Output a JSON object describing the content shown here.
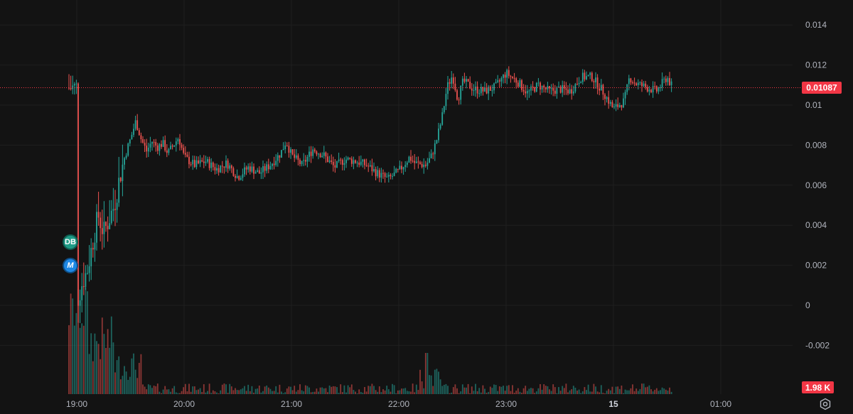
{
  "chart_data": {
    "type": "candlestick",
    "title": "",
    "xlabel": "",
    "ylabel": "",
    "x_ticks": [
      "19:00",
      "20:00",
      "21:00",
      "22:00",
      "23:00",
      "15",
      "01:00"
    ],
    "y_ticks": [
      "0.014",
      "0.012",
      "0.01",
      "0.008",
      "0.006",
      "0.004",
      "0.002",
      "0",
      "-0.002"
    ],
    "ylim": [
      -0.0035,
      0.0155
    ],
    "grid": true,
    "last_price": 0.01087,
    "last_price_label": "0.01087",
    "last_volume_label": "1.98 K",
    "price_path": [
      [
        "19:00",
        0.0001
      ],
      [
        "19:03",
        0.0011
      ],
      [
        "19:06",
        0.0018
      ],
      [
        "19:09",
        0.0032
      ],
      [
        "19:12",
        0.0045
      ],
      [
        "19:15",
        0.0036
      ],
      [
        "19:18",
        0.0043
      ],
      [
        "19:21",
        0.005
      ],
      [
        "19:24",
        0.0064
      ],
      [
        "19:27",
        0.0075
      ],
      [
        "19:30",
        0.0083
      ],
      [
        "19:33",
        0.0092
      ],
      [
        "19:36",
        0.0083
      ],
      [
        "19:39",
        0.0077
      ],
      [
        "19:42",
        0.0082
      ],
      [
        "19:45",
        0.0079
      ],
      [
        "19:48",
        0.0081
      ],
      [
        "19:51",
        0.0076
      ],
      [
        "19:54",
        0.008
      ],
      [
        "19:57",
        0.0084
      ],
      [
        "20:00",
        0.0074
      ],
      [
        "20:06",
        0.007
      ],
      [
        "20:12",
        0.0072
      ],
      [
        "20:18",
        0.0068
      ],
      [
        "20:24",
        0.0071
      ],
      [
        "20:30",
        0.0064
      ],
      [
        "20:36",
        0.0069
      ],
      [
        "20:42",
        0.0066
      ],
      [
        "20:48",
        0.007
      ],
      [
        "20:54",
        0.0076
      ],
      [
        "20:57",
        0.0082
      ],
      [
        "21:00",
        0.0075
      ],
      [
        "21:06",
        0.007
      ],
      [
        "21:12",
        0.0078
      ],
      [
        "21:18",
        0.0075
      ],
      [
        "21:24",
        0.0069
      ],
      [
        "21:30",
        0.0073
      ],
      [
        "21:36",
        0.0072
      ],
      [
        "21:42",
        0.007
      ],
      [
        "21:48",
        0.0066
      ],
      [
        "21:54",
        0.0063
      ],
      [
        "22:00",
        0.0067
      ],
      [
        "22:06",
        0.0074
      ],
      [
        "22:09",
        0.0071
      ],
      [
        "22:15",
        0.007
      ],
      [
        "22:18",
        0.0074
      ],
      [
        "22:21",
        0.0082
      ],
      [
        "22:24",
        0.0093
      ],
      [
        "22:27",
        0.0109
      ],
      [
        "22:30",
        0.0115
      ],
      [
        "22:33",
        0.0103
      ],
      [
        "22:36",
        0.0112
      ],
      [
        "22:42",
        0.0108
      ],
      [
        "22:48",
        0.0107
      ],
      [
        "22:54",
        0.0109
      ],
      [
        "23:00",
        0.0116
      ],
      [
        "23:06",
        0.0112
      ],
      [
        "23:12",
        0.0106
      ],
      [
        "23:18",
        0.011
      ],
      [
        "23:24",
        0.0107
      ],
      [
        "23:30",
        0.0108
      ],
      [
        "23:36",
        0.0107
      ],
      [
        "23:42",
        0.0114
      ],
      [
        "23:48",
        0.0114
      ],
      [
        "23:54",
        0.0107
      ],
      [
        "00:00",
        0.0098
      ],
      [
        "00:06",
        0.0102
      ],
      [
        "00:09",
        0.0114
      ],
      [
        "00:12",
        0.0111
      ],
      [
        "00:18",
        0.0109
      ],
      [
        "00:24",
        0.0107
      ],
      [
        "00:30",
        0.0114
      ],
      [
        "00:33",
        0.01087
      ]
    ],
    "colors": {
      "up": "#26a69a",
      "down": "#ef5350",
      "background": "#131313",
      "grid": "#1f1f1f",
      "axis_text": "#b2b5be",
      "price_tag": "#f23645"
    }
  },
  "markers": [
    {
      "label": "DB",
      "color": "#1e9b86"
    },
    {
      "label": "M",
      "color": "#1e88e5"
    }
  ],
  "icons": {
    "settings": "gear-icon"
  }
}
